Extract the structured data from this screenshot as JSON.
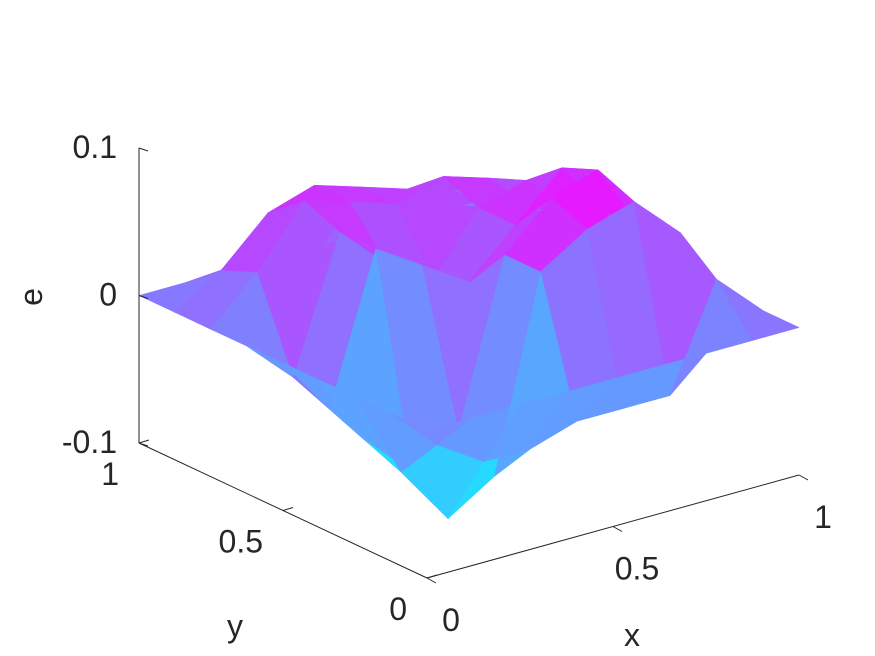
{
  "chart_data": {
    "type": "surface",
    "title": "",
    "xlabel": "x",
    "ylabel": "y",
    "zlabel": "e",
    "xlim": [
      0,
      1
    ],
    "ylim": [
      0,
      1
    ],
    "zlim": [
      -0.1,
      0.1
    ],
    "colormap": "cool",
    "colormap_colors": [
      "#00ffff",
      "#ff00ff"
    ],
    "color_limits": [
      -0.1,
      0.1
    ],
    "grid": false,
    "shading": "interp",
    "x_ticks": [
      {
        "value": 0,
        "label": "0"
      },
      {
        "value": 0.5,
        "label": "0.5"
      },
      {
        "value": 1,
        "label": "1"
      }
    ],
    "y_ticks": [
      {
        "value": 0,
        "label": "0"
      },
      {
        "value": 0.5,
        "label": "0.5"
      },
      {
        "value": 1,
        "label": "1"
      }
    ],
    "z_ticks": [
      {
        "value": -0.1,
        "label": "-0.1"
      },
      {
        "value": 0,
        "label": "0"
      },
      {
        "value": 0.1,
        "label": "0.1"
      }
    ],
    "x": [
      0,
      0.125,
      0.25,
      0.375,
      0.5,
      0.625,
      0.75,
      0.875,
      1
    ],
    "y": [
      0,
      0.125,
      0.25,
      0.375,
      0.5,
      0.625,
      0.75,
      0.875,
      1
    ],
    "z": [
      [
        0,
        0,
        0,
        0,
        0,
        0,
        0,
        0,
        0
      ],
      [
        0,
        -0.03,
        -0.05,
        -0.05,
        -0.04,
        -0.04,
        -0.04,
        0.03,
        0
      ],
      [
        0,
        -0.06,
        -0.1,
        -0.08,
        0.05,
        0.07,
        0.08,
        0.05,
        0
      ],
      [
        0,
        -0.05,
        -0.08,
        -0.06,
        0.05,
        0.08,
        0.09,
        0.04,
        0
      ],
      [
        0,
        -0.04,
        0.06,
        0.04,
        0.02,
        0.05,
        0.08,
        0.04,
        0
      ],
      [
        0,
        -0.03,
        0.06,
        0.03,
        0.01,
        0.05,
        0.06,
        0.03,
        0
      ],
      [
        0,
        0.03,
        0.07,
        0.06,
        0.05,
        0.06,
        0.05,
        0.02,
        0
      ],
      [
        0,
        0.02,
        0.05,
        0.06,
        0.05,
        0.04,
        0.03,
        0.01,
        0
      ],
      [
        0,
        0,
        0,
        0,
        0,
        0,
        0,
        0,
        0
      ]
    ]
  }
}
